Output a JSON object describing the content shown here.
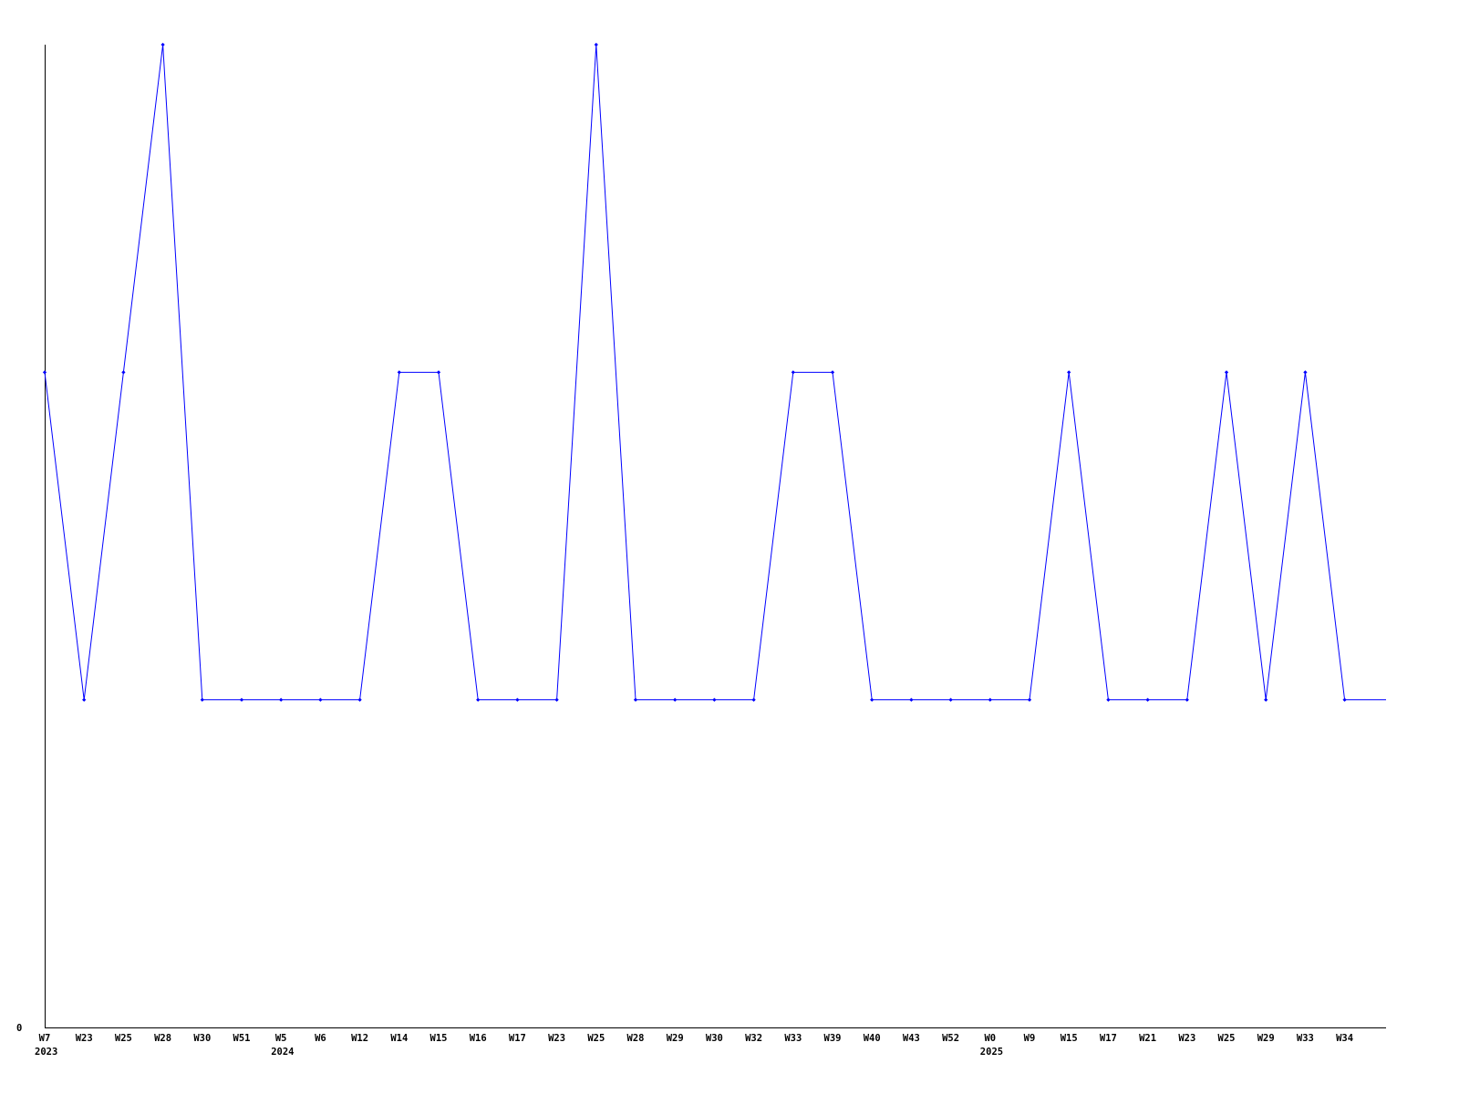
{
  "chart_data": {
    "type": "line",
    "title": "",
    "xlabel": "",
    "ylabel": "",
    "ylim": [
      0,
      3
    ],
    "y_tick_labels": [
      "0"
    ],
    "grid": false,
    "line_color": "#0000ff",
    "axis_color": "#000000",
    "categories": [
      "W7",
      "W23",
      "W25",
      "W28",
      "W30",
      "W51",
      "W5",
      "W6",
      "W12",
      "W14",
      "W15",
      "W16",
      "W17",
      "W23",
      "W25",
      "W28",
      "W29",
      "W30",
      "W32",
      "W33",
      "W39",
      "W40",
      "W43",
      "W52",
      "W0",
      "W9",
      "W15",
      "W17",
      "W21",
      "W23",
      "W25",
      "W29",
      "W33",
      "W34"
    ],
    "year_labels": [
      {
        "category_index": 0,
        "label": "2023"
      },
      {
        "category_index": 6,
        "label": "2024"
      },
      {
        "category_index": 24,
        "label": "2025"
      }
    ],
    "series": [
      {
        "values": [
          2,
          1,
          2,
          3,
          1,
          1,
          1,
          1,
          1,
          2,
          2,
          1,
          1,
          1,
          3,
          1,
          1,
          1,
          1,
          2,
          2,
          1,
          1,
          1,
          1,
          1,
          2,
          1,
          1,
          1,
          2,
          1,
          2,
          1
        ]
      }
    ],
    "trailing_value": 1
  }
}
